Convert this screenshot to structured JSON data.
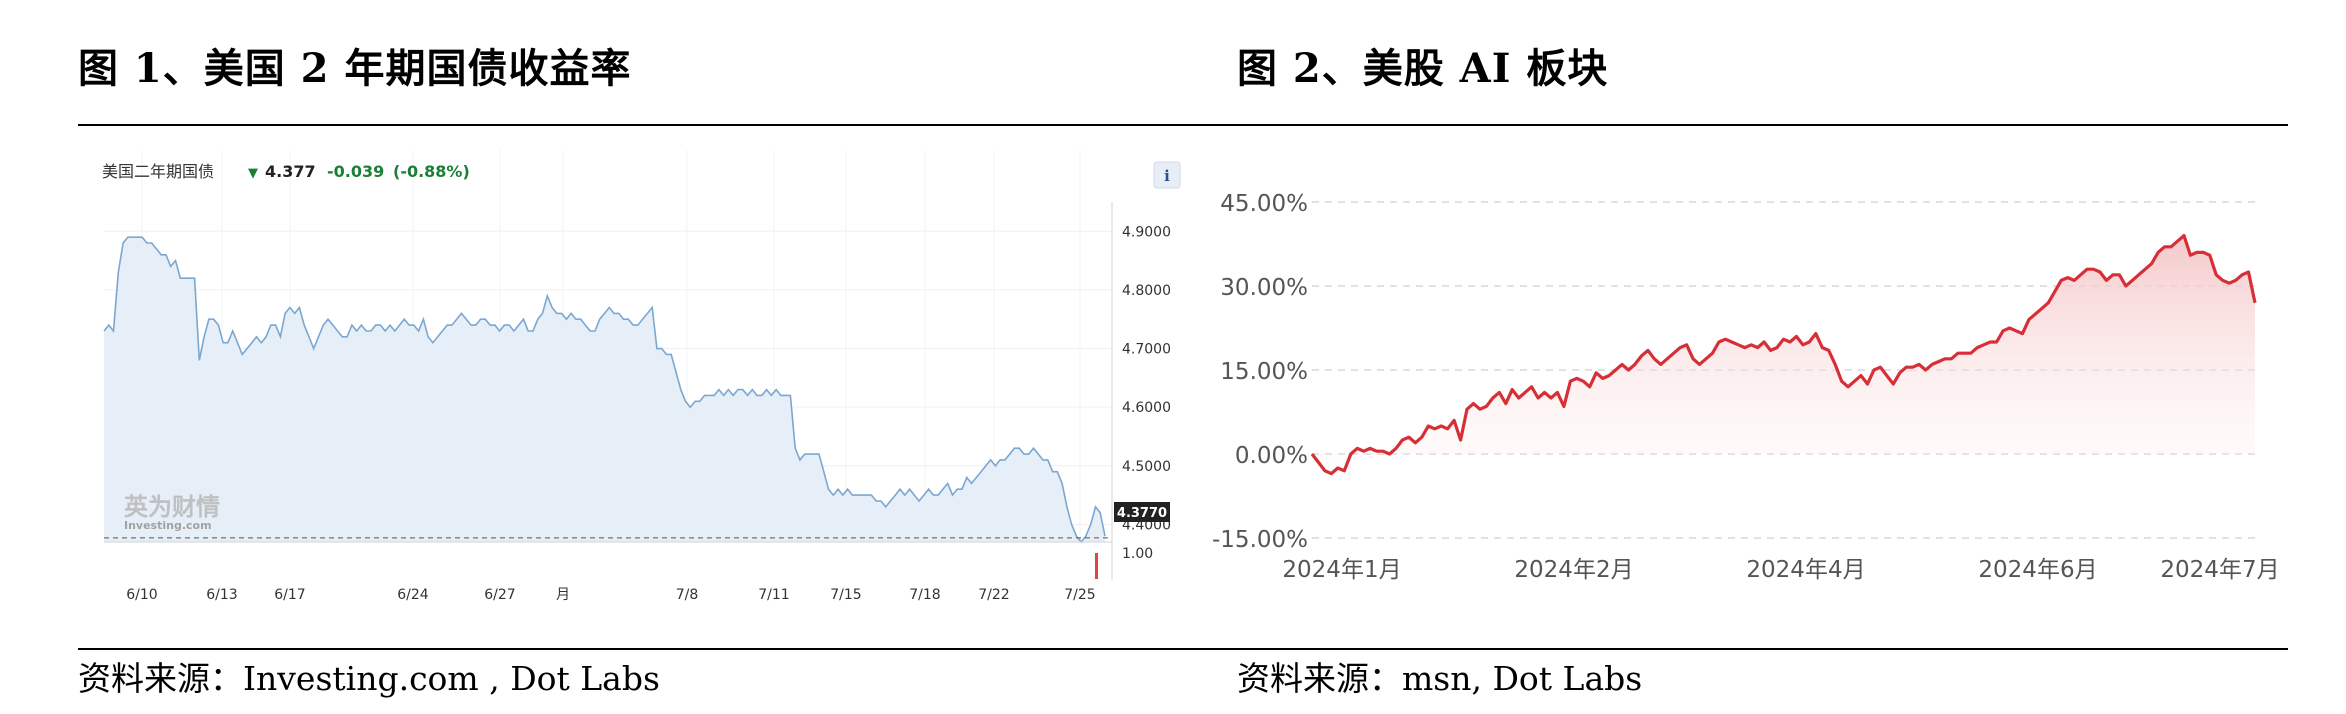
{
  "figure1": {
    "title": "图  1、美国 2 年期国债收益率",
    "source": "资料来源：Investing.com , Dot Labs"
  },
  "figure2": {
    "title": "图  2、美股 AI 板块",
    "source": "资料来源：msn, Dot Labs"
  },
  "chart_data": [
    {
      "type": "area",
      "header": {
        "name": "美国二年期国债",
        "arrow_icon": "down-arrow-icon",
        "price": "4.377",
        "change": "-0.039",
        "change_pct": "(-0.88%)",
        "info_button": "i"
      },
      "watermark": {
        "main": "英为财情",
        "sub": "Investing.com"
      },
      "x_tick_labels": [
        "6/10",
        "6/13",
        "6/17",
        "6/24",
        "6/27",
        "月",
        "7/8",
        "7/11",
        "7/15",
        "7/18",
        "7/22",
        "7/25"
      ],
      "y_tick_labels": [
        "4.9000",
        "4.8000",
        "4.7000",
        "4.6000",
        "4.5000",
        "4.4000"
      ],
      "volume_tick_label": "1.00",
      "ylim": [
        4.37,
        4.95
      ],
      "current_value_label": "4.3770",
      "current_value": 4.377,
      "colors": {
        "line": "#7ba7d1",
        "fill": "#e6eef7",
        "up": "#1a7f37"
      },
      "values": [
        4.73,
        4.74,
        4.73,
        4.83,
        4.88,
        4.89,
        4.89,
        4.89,
        4.89,
        4.88,
        4.88,
        4.87,
        4.86,
        4.86,
        4.84,
        4.85,
        4.82,
        4.82,
        4.82,
        4.82,
        4.68,
        4.72,
        4.75,
        4.75,
        4.74,
        4.71,
        4.71,
        4.73,
        4.71,
        4.69,
        4.7,
        4.71,
        4.72,
        4.71,
        4.72,
        4.74,
        4.74,
        4.72,
        4.76,
        4.77,
        4.76,
        4.77,
        4.74,
        4.72,
        4.7,
        4.72,
        4.74,
        4.75,
        4.74,
        4.73,
        4.72,
        4.72,
        4.74,
        4.73,
        4.74,
        4.73,
        4.73,
        4.74,
        4.74,
        4.73,
        4.74,
        4.73,
        4.74,
        4.75,
        4.74,
        4.74,
        4.73,
        4.75,
        4.72,
        4.71,
        4.72,
        4.73,
        4.74,
        4.74,
        4.75,
        4.76,
        4.75,
        4.74,
        4.74,
        4.75,
        4.75,
        4.74,
        4.74,
        4.73,
        4.74,
        4.74,
        4.73,
        4.74,
        4.75,
        4.73,
        4.73,
        4.75,
        4.76,
        4.79,
        4.77,
        4.76,
        4.76,
        4.75,
        4.76,
        4.75,
        4.75,
        4.74,
        4.73,
        4.73,
        4.75,
        4.76,
        4.77,
        4.76,
        4.76,
        4.75,
        4.75,
        4.74,
        4.74,
        4.75,
        4.76,
        4.77,
        4.7,
        4.7,
        4.69,
        4.69,
        4.66,
        4.63,
        4.61,
        4.6,
        4.61,
        4.61,
        4.62,
        4.62,
        4.62,
        4.63,
        4.62,
        4.63,
        4.62,
        4.63,
        4.63,
        4.62,
        4.63,
        4.62,
        4.62,
        4.63,
        4.62,
        4.63,
        4.62,
        4.62,
        4.62,
        4.53,
        4.51,
        4.52,
        4.52,
        4.52,
        4.52,
        4.49,
        4.46,
        4.45,
        4.46,
        4.45,
        4.46,
        4.45,
        4.45,
        4.45,
        4.45,
        4.45,
        4.44,
        4.44,
        4.43,
        4.44,
        4.45,
        4.46,
        4.45,
        4.46,
        4.45,
        4.44,
        4.45,
        4.46,
        4.45,
        4.45,
        4.46,
        4.47,
        4.45,
        4.46,
        4.46,
        4.48,
        4.47,
        4.48,
        4.49,
        4.5,
        4.51,
        4.5,
        4.51,
        4.51,
        4.52,
        4.53,
        4.53,
        4.52,
        4.52,
        4.53,
        4.52,
        4.51,
        4.51,
        4.49,
        4.49,
        4.47,
        4.43,
        4.4,
        4.38,
        4.37,
        4.38,
        4.4,
        4.43,
        4.42,
        4.38
      ]
    },
    {
      "type": "area",
      "y_tick_labels": [
        "45.00%",
        "30.00%",
        "15.00%",
        "0.00%",
        "-15.00%"
      ],
      "ylim": [
        -15,
        45
      ],
      "x_tick_labels": [
        "2024年1月",
        "2024年2月",
        "2024年4月",
        "2024年6月",
        "2024年7月"
      ],
      "grid": true,
      "colors": {
        "line": "#d62f38",
        "fill": "#f4c3c4"
      },
      "values": [
        0.0,
        -1.5,
        -3.0,
        -3.5,
        -2.5,
        -3.0,
        0.0,
        1.0,
        0.5,
        1.0,
        0.5,
        0.5,
        0.0,
        1.0,
        2.5,
        3.0,
        2.0,
        3.0,
        5.0,
        4.5,
        5.0,
        4.5,
        6.0,
        2.5,
        8.0,
        9.0,
        8.0,
        8.5,
        10.0,
        11.0,
        9.0,
        11.5,
        10.0,
        11.0,
        12.0,
        10.0,
        11.0,
        10.0,
        11.0,
        8.5,
        13.0,
        13.5,
        13.0,
        12.0,
        14.5,
        13.5,
        14.0,
        15.0,
        16.0,
        15.0,
        16.0,
        17.5,
        18.5,
        17.0,
        16.0,
        17.0,
        18.0,
        19.0,
        19.5,
        17.0,
        16.0,
        17.0,
        18.0,
        20.0,
        20.5,
        20.0,
        19.5,
        19.0,
        19.5,
        19.0,
        20.0,
        18.5,
        19.0,
        20.5,
        20.0,
        21.0,
        19.5,
        20.0,
        21.5,
        19.0,
        18.5,
        16.0,
        13.0,
        12.0,
        13.0,
        14.0,
        12.5,
        15.0,
        15.5,
        14.0,
        12.5,
        14.5,
        15.5,
        15.5,
        16.0,
        15.0,
        16.0,
        16.5,
        17.0,
        17.0,
        18.0,
        18.0,
        18.0,
        19.0,
        19.5,
        20.0,
        20.0,
        22.0,
        22.5,
        22.0,
        21.5,
        24.0,
        25.0,
        26.0,
        27.0,
        29.0,
        31.0,
        31.5,
        31.0,
        32.0,
        33.0,
        33.0,
        32.5,
        31.0,
        32.0,
        32.0,
        30.0,
        31.0,
        32.0,
        33.0,
        34.0,
        36.0,
        37.0,
        37.0,
        38.0,
        39.0,
        35.5,
        36.0,
        36.0,
        35.5,
        32.0,
        31.0,
        30.5,
        31.0,
        32.0,
        32.5,
        27.0
      ]
    }
  ]
}
